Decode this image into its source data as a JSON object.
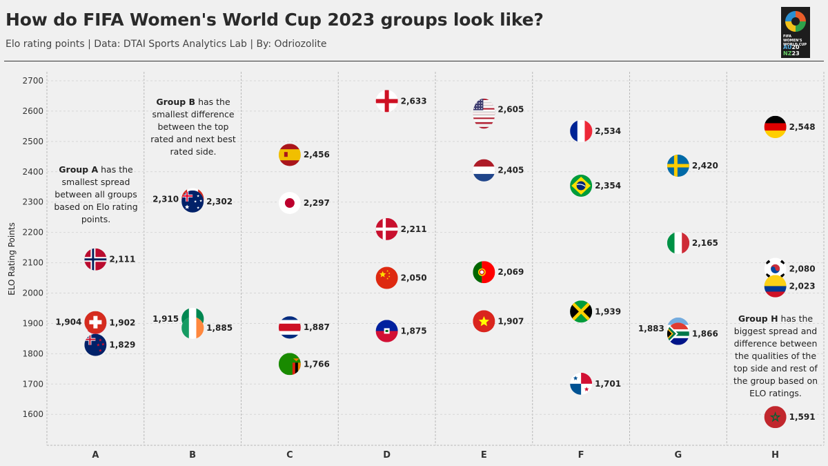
{
  "title": "How do FIFA Women's World Cup 2023 groups look like?",
  "subtitle": "Elo rating points | Data: DTAI Sports Analytics Lab | By: Odriozolite",
  "logo": {
    "line1": "FIFA WOMEN'S WORLD CUP",
    "au": "AU",
    "nz": "NZ",
    "year1": "20",
    "year2": "23"
  },
  "colors": {
    "background": "#f0f0f0",
    "grid": "#b8b8b8",
    "text": "#222222"
  },
  "annotations": {
    "group_a": {
      "bold": "Group A",
      "text": " has the smallest spread between all groups based on Elo rating points."
    },
    "group_b": {
      "bold": "Group B",
      "text": " has the smallest difference between the top rated and next best rated side."
    },
    "group_h": {
      "bold": "Group H",
      "text": " has the biggest spread and difference between the qualities of the top side and rest of the group based on ELO ratings."
    }
  },
  "chart_data": {
    "type": "scatter",
    "title": "How do FIFA Women's World Cup 2023 groups look like?",
    "xlabel": "",
    "ylabel": "ELO Rating Points",
    "categories": [
      "A",
      "B",
      "C",
      "D",
      "E",
      "F",
      "G",
      "H"
    ],
    "ylim": [
      1505,
      2700
    ],
    "yticks": [
      1600,
      1700,
      1800,
      1900,
      2000,
      2100,
      2200,
      2300,
      2400,
      2500,
      2600,
      2700
    ],
    "points": [
      {
        "group": "A",
        "team": "Norway",
        "flag": "norway-flag",
        "value": 2111,
        "label": "2,111",
        "side": "right"
      },
      {
        "group": "A",
        "team": "Philippines",
        "flag": "philippines-flag",
        "value": 1902,
        "label": "1,902",
        "side": "right"
      },
      {
        "group": "A",
        "team": "Switzerland",
        "flag": "switzerland-flag",
        "value": 1904,
        "label": "1,904",
        "side": "left"
      },
      {
        "group": "A",
        "team": "New Zealand",
        "flag": "new-zealand-flag",
        "value": 1829,
        "label": "1,829",
        "side": "right"
      },
      {
        "group": "B",
        "team": "Canada",
        "flag": "canada-flag",
        "value": 2310,
        "label": "2,310",
        "side": "left"
      },
      {
        "group": "B",
        "team": "Australia",
        "flag": "australia-flag",
        "value": 2302,
        "label": "2,302",
        "side": "right"
      },
      {
        "group": "B",
        "team": "Nigeria",
        "flag": "nigeria-flag",
        "value": 1915,
        "label": "1,915",
        "side": "left"
      },
      {
        "group": "B",
        "team": "Ireland",
        "flag": "ireland-flag",
        "value": 1885,
        "label": "1,885",
        "side": "right"
      },
      {
        "group": "C",
        "team": "Spain",
        "flag": "spain-flag",
        "value": 2456,
        "label": "2,456",
        "side": "right"
      },
      {
        "group": "C",
        "team": "Japan",
        "flag": "japan-flag",
        "value": 2297,
        "label": "2,297",
        "side": "right"
      },
      {
        "group": "C",
        "team": "Costa Rica",
        "flag": "costa-rica-flag",
        "value": 1887,
        "label": "1,887",
        "side": "right"
      },
      {
        "group": "C",
        "team": "Zambia",
        "flag": "zambia-flag",
        "value": 1766,
        "label": "1,766",
        "side": "right"
      },
      {
        "group": "D",
        "team": "England",
        "flag": "england-flag",
        "value": 2633,
        "label": "2,633",
        "side": "right"
      },
      {
        "group": "D",
        "team": "Denmark",
        "flag": "denmark-flag",
        "value": 2211,
        "label": "2,211",
        "side": "right"
      },
      {
        "group": "D",
        "team": "China",
        "flag": "china-flag",
        "value": 2050,
        "label": "2,050",
        "side": "right"
      },
      {
        "group": "D",
        "team": "Haiti",
        "flag": "haiti-flag",
        "value": 1875,
        "label": "1,875",
        "side": "right"
      },
      {
        "group": "E",
        "team": "USA",
        "flag": "usa-flag",
        "value": 2605,
        "label": "2,605",
        "side": "right"
      },
      {
        "group": "E",
        "team": "Netherlands",
        "flag": "netherlands-flag",
        "value": 2405,
        "label": "2,405",
        "side": "right"
      },
      {
        "group": "E",
        "team": "Portugal",
        "flag": "portugal-flag",
        "value": 2069,
        "label": "2,069",
        "side": "right"
      },
      {
        "group": "E",
        "team": "Vietnam",
        "flag": "vietnam-flag",
        "value": 1907,
        "label": "1,907",
        "side": "right"
      },
      {
        "group": "F",
        "team": "France",
        "flag": "france-flag",
        "value": 2534,
        "label": "2,534",
        "side": "right"
      },
      {
        "group": "F",
        "team": "Brazil",
        "flag": "brazil-flag",
        "value": 2354,
        "label": "2,354",
        "side": "right"
      },
      {
        "group": "F",
        "team": "Jamaica",
        "flag": "jamaica-flag",
        "value": 1939,
        "label": "1,939",
        "side": "right"
      },
      {
        "group": "F",
        "team": "Panama",
        "flag": "panama-flag",
        "value": 1701,
        "label": "1,701",
        "side": "right"
      },
      {
        "group": "G",
        "team": "Sweden",
        "flag": "sweden-flag",
        "value": 2420,
        "label": "2,420",
        "side": "right"
      },
      {
        "group": "G",
        "team": "Italy",
        "flag": "italy-flag",
        "value": 2165,
        "label": "2,165",
        "side": "right"
      },
      {
        "group": "G",
        "team": "Argentina",
        "flag": "argentina-flag",
        "value": 1883,
        "label": "1,883",
        "side": "left"
      },
      {
        "group": "G",
        "team": "South Africa",
        "flag": "south-africa-flag",
        "value": 1866,
        "label": "1,866",
        "side": "right"
      },
      {
        "group": "H",
        "team": "Germany",
        "flag": "germany-flag",
        "value": 2548,
        "label": "2,548",
        "side": "right"
      },
      {
        "group": "H",
        "team": "South Korea",
        "flag": "south-korea-flag",
        "value": 2080,
        "label": "2,080",
        "side": "right"
      },
      {
        "group": "H",
        "team": "Colombia",
        "flag": "colombia-flag",
        "value": 2023,
        "label": "2,023",
        "side": "right"
      },
      {
        "group": "H",
        "team": "Morocco",
        "flag": "morocco-flag",
        "value": 1591,
        "label": "1,591",
        "side": "right"
      }
    ]
  }
}
